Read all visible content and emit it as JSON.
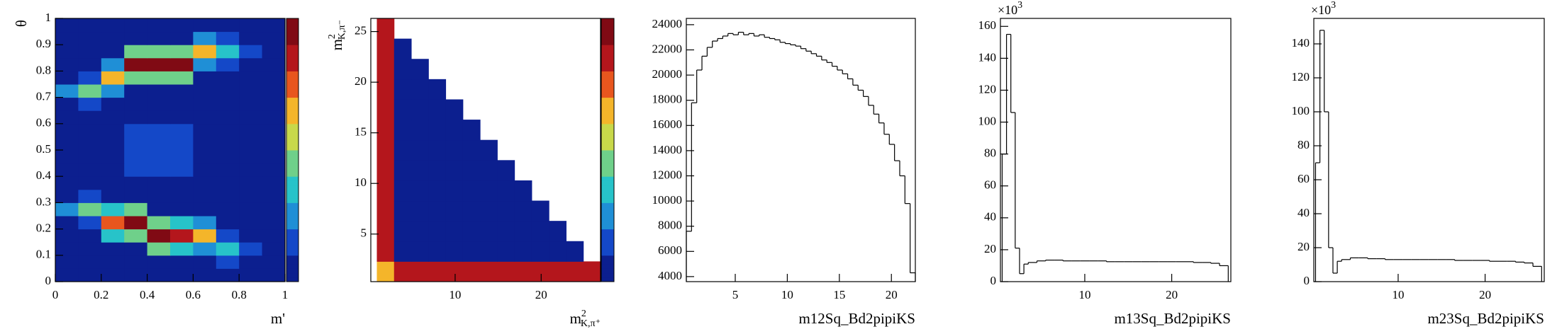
{
  "chart_data": [
    {
      "type": "heatmap",
      "x_label": "m'",
      "y_label": "θ",
      "xlim": [
        0,
        1
      ],
      "ylim": [
        0,
        1
      ],
      "xticks": [
        0,
        0.2,
        0.4,
        0.6,
        0.8,
        1
      ],
      "yticks": [
        0,
        0.1,
        0.2,
        0.3,
        0.4,
        0.5,
        0.6,
        0.7,
        0.8,
        0.9,
        1
      ],
      "xbins": [
        0,
        0.1,
        0.2,
        0.3,
        0.4,
        0.5,
        0.6,
        0.7,
        0.8,
        0.9,
        1
      ],
      "ybins": [
        0,
        0.05,
        0.1,
        0.15,
        0.2,
        0.25,
        0.3,
        0.35,
        0.4,
        0.45,
        0.5,
        0.55,
        0.6,
        0.65,
        0.7,
        0.75,
        0.8,
        0.85,
        0.9,
        0.95,
        1
      ],
      "z": [
        [
          6,
          6,
          6,
          6,
          6,
          6,
          6,
          6,
          6,
          3
        ],
        [
          6,
          6,
          6,
          6,
          6,
          6,
          6,
          16,
          7,
          3
        ],
        [
          6,
          6,
          6,
          6,
          45,
          38,
          27,
          35,
          15,
          3
        ],
        [
          6,
          6,
          31,
          43,
          100,
          85,
          60,
          16,
          7,
          3
        ],
        [
          9,
          18,
          70,
          95,
          45,
          38,
          27,
          6,
          6,
          3
        ],
        [
          20,
          40,
          31,
          43,
          6,
          6,
          6,
          6,
          6,
          3
        ],
        [
          9,
          18,
          6,
          6,
          6,
          6,
          6,
          6,
          6,
          3
        ],
        [
          6,
          6,
          8,
          9,
          9,
          9,
          8,
          6,
          6,
          3
        ],
        [
          6,
          6,
          9,
          10,
          10,
          10,
          9,
          6,
          6,
          3
        ],
        [
          6,
          6,
          9,
          10,
          10,
          10,
          9,
          6,
          6,
          3
        ],
        [
          6,
          6,
          9,
          10,
          10,
          10,
          9,
          6,
          6,
          3
        ],
        [
          6,
          6,
          9,
          10,
          10,
          10,
          9,
          6,
          6,
          3
        ],
        [
          6,
          6,
          8,
          9,
          9,
          9,
          8,
          6,
          6,
          3
        ],
        [
          9,
          18,
          6,
          6,
          6,
          6,
          6,
          6,
          6,
          3
        ],
        [
          20,
          40,
          29,
          6,
          6,
          6,
          6,
          6,
          6,
          3
        ],
        [
          9,
          18,
          65,
          40,
          45,
          40,
          6,
          6,
          6,
          3
        ],
        [
          6,
          6,
          29,
          90,
          100,
          90,
          27,
          16,
          7,
          3
        ],
        [
          6,
          6,
          6,
          40,
          45,
          40,
          60,
          35,
          15,
          3
        ],
        [
          6,
          6,
          6,
          6,
          6,
          6,
          27,
          16,
          7,
          3
        ],
        [
          6,
          6,
          6,
          6,
          6,
          6,
          6,
          6,
          6,
          3
        ]
      ],
      "zlim": [
        0,
        100
      ],
      "colorscale": [
        "#0c1f8f",
        "#1448c8",
        "#1f8fd6",
        "#27c3c9",
        "#6fd08a",
        "#c8d84a",
        "#f4b52a",
        "#e8561e",
        "#b4161c",
        "#800a14"
      ]
    },
    {
      "type": "heatmap",
      "x_label": {
        "text": "m",
        "sup": "2",
        "sub": "K,π⁺"
      },
      "y_label": {
        "text": "m",
        "sup": "2",
        "sub": "K,π⁻"
      },
      "xlim": [
        0.2,
        26.9
      ],
      "ylim": [
        0.3,
        26.3
      ],
      "xticks": [
        10,
        20
      ],
      "yticks": [
        5,
        10,
        15,
        20,
        25
      ],
      "xbins": [
        0.9,
        2.9,
        4.9,
        6.9,
        8.9,
        10.9,
        12.9,
        14.9,
        16.9,
        18.9,
        20.9,
        22.9,
        24.9,
        26.9
      ],
      "ybins": [
        0.3,
        2.3,
        4.3,
        6.3,
        8.3,
        10.3,
        12.3,
        14.3,
        16.3,
        18.3,
        20.3,
        22.3,
        24.3,
        26.3
      ],
      "z": [
        [
          60,
          85,
          85,
          85,
          85,
          85,
          85,
          85,
          85,
          85,
          85,
          85,
          85
        ],
        [
          85,
          6,
          6,
          6,
          6,
          6,
          6,
          6,
          6,
          6,
          6,
          6,
          null
        ],
        [
          85,
          6,
          6,
          6,
          6,
          6,
          6,
          6,
          6,
          6,
          6,
          null,
          null
        ],
        [
          85,
          6,
          6,
          6,
          6,
          6,
          6,
          6,
          6,
          6,
          null,
          null,
          null
        ],
        [
          85,
          9,
          9,
          6,
          6,
          6,
          6,
          6,
          6,
          null,
          null,
          null,
          null
        ],
        [
          85,
          9,
          9,
          6,
          6,
          6,
          6,
          6,
          null,
          null,
          null,
          null,
          null
        ],
        [
          85,
          6,
          6,
          6,
          6,
          6,
          6,
          null,
          null,
          null,
          null,
          null,
          null
        ],
        [
          85,
          6,
          6,
          6,
          6,
          6,
          null,
          null,
          null,
          null,
          null,
          null,
          null
        ],
        [
          85,
          6,
          6,
          6,
          6,
          null,
          null,
          null,
          null,
          null,
          null,
          null,
          null
        ],
        [
          85,
          6,
          6,
          6,
          null,
          null,
          null,
          null,
          null,
          null,
          null,
          null,
          null
        ],
        [
          85,
          6,
          6,
          null,
          null,
          null,
          null,
          null,
          null,
          null,
          null,
          null,
          null
        ],
        [
          85,
          6,
          null,
          null,
          null,
          null,
          null,
          null,
          null,
          null,
          null,
          null,
          null
        ],
        [
          85,
          null,
          null,
          null,
          null,
          null,
          null,
          null,
          null,
          null,
          null,
          null,
          null
        ]
      ],
      "zlim": [
        0,
        100
      ],
      "colorscale": [
        "#0c1f8f",
        "#1448c8",
        "#1f8fd6",
        "#27c3c9",
        "#6fd08a",
        "#c8d84a",
        "#f4b52a",
        "#e8561e",
        "#b4161c",
        "#800a14"
      ]
    },
    {
      "type": "histogram",
      "x_label": "m12Sq_Bd2pipiKS",
      "xlim": [
        0.3,
        22.3
      ],
      "ylim": [
        3600,
        24500
      ],
      "xticks": [
        5,
        10,
        15,
        20
      ],
      "yticks": [
        4000,
        6000,
        8000,
        10000,
        12000,
        14000,
        16000,
        18000,
        20000,
        22000,
        24000
      ],
      "bins": [
        0.3,
        0.8,
        1.3,
        1.8,
        2.3,
        2.8,
        3.3,
        3.8,
        4.3,
        4.8,
        5.3,
        5.8,
        6.3,
        6.8,
        7.3,
        7.8,
        8.3,
        8.8,
        9.3,
        9.8,
        10.3,
        10.8,
        11.3,
        11.8,
        12.3,
        12.8,
        13.3,
        13.8,
        14.3,
        14.8,
        15.3,
        15.8,
        16.3,
        16.8,
        17.3,
        17.8,
        18.3,
        18.8,
        19.3,
        19.8,
        20.3,
        20.8,
        21.3,
        21.8,
        22.3
      ],
      "values": [
        7600,
        17800,
        20400,
        21500,
        22200,
        22700,
        22900,
        23100,
        23300,
        23200,
        23400,
        23200,
        23300,
        23100,
        23200,
        23000,
        22900,
        22800,
        22600,
        22500,
        22400,
        22300,
        22100,
        21900,
        21700,
        21500,
        21200,
        21000,
        20700,
        20400,
        20100,
        19700,
        19200,
        18800,
        18300,
        17600,
        16900,
        16200,
        15300,
        14500,
        13200,
        12000,
        9800,
        4300
      ],
      "color": "#000000"
    },
    {
      "type": "histogram",
      "x_label": "m13Sq_Bd2pipiKS",
      "y_exponent": {
        "text": "×10",
        "sup": "3"
      },
      "xlim": [
        0.3,
        26.8
      ],
      "ylim": [
        0,
        165
      ],
      "xticks": [
        10,
        20
      ],
      "yticks": [
        0,
        20,
        40,
        60,
        80,
        100,
        120,
        140,
        160
      ],
      "bins": [
        0.5,
        1.0,
        1.5,
        2.0,
        2.5,
        3.0,
        3.5,
        4.5,
        5.5,
        6.5,
        7.5,
        8.5,
        9.5,
        10.5,
        11.5,
        12.5,
        13.5,
        14.5,
        15.5,
        16.5,
        17.5,
        18.5,
        19.5,
        20.5,
        21.5,
        22.5,
        23.5,
        24.5,
        25.5,
        26.5
      ],
      "values": [
        80,
        155,
        106,
        21,
        5,
        11,
        12,
        13,
        13.5,
        13.5,
        13,
        13,
        13,
        13,
        13,
        12.5,
        12.5,
        12.5,
        12.5,
        12.5,
        12.5,
        12.5,
        12.5,
        12.5,
        12.5,
        12,
        12,
        11.5,
        10
      ],
      "color": "#000000"
    },
    {
      "type": "histogram",
      "x_label": "m23Sq_Bd2pipiKS",
      "y_exponent": {
        "text": "×10",
        "sup": "3"
      },
      "xlim": [
        0.3,
        26.8
      ],
      "ylim": [
        0,
        155
      ],
      "xticks": [
        10,
        20
      ],
      "yticks": [
        0,
        20,
        40,
        60,
        80,
        100,
        120,
        140
      ],
      "bins": [
        0.5,
        1.0,
        1.5,
        2.0,
        2.5,
        3.0,
        3.5,
        4.5,
        5.5,
        6.5,
        7.5,
        8.5,
        9.5,
        10.5,
        11.5,
        12.5,
        13.5,
        14.5,
        15.5,
        16.5,
        17.5,
        18.5,
        19.5,
        20.5,
        21.5,
        22.5,
        23.5,
        24.5,
        25.5,
        26.5
      ],
      "values": [
        70,
        148,
        100,
        20,
        5,
        12,
        13,
        14,
        14,
        13.5,
        13.5,
        13,
        13,
        13,
        13,
        13,
        13,
        13,
        13,
        12.5,
        12.5,
        12.5,
        12.5,
        12,
        12,
        12,
        11.5,
        11,
        9
      ],
      "color": "#000000"
    }
  ]
}
